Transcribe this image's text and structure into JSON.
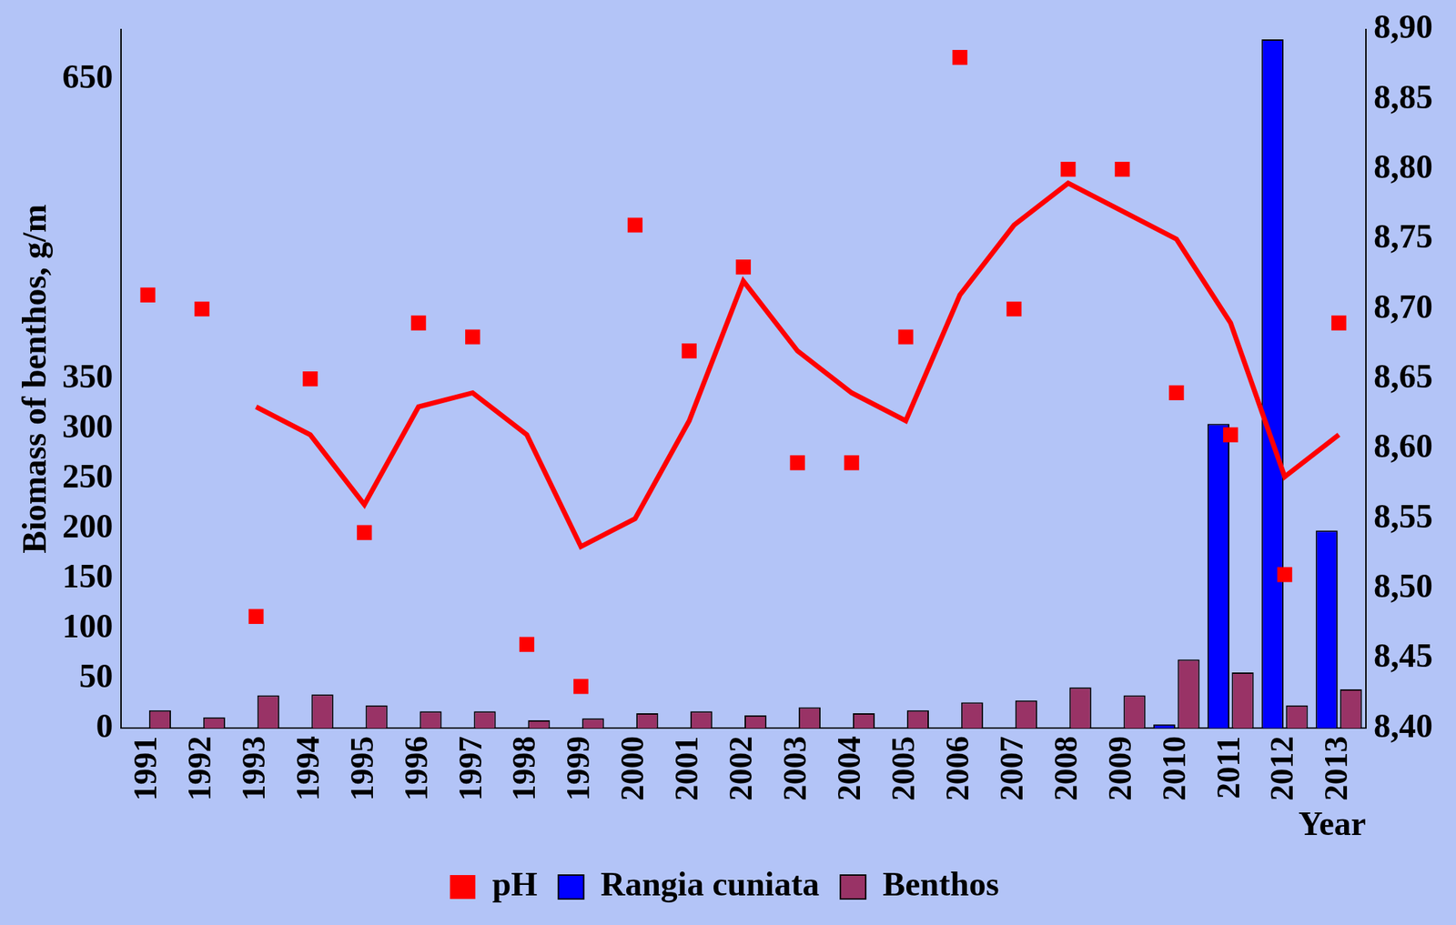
{
  "chart_data": {
    "type": "bar",
    "y_label": "Biomass of benthos, g/m",
    "x_label": "Year",
    "categories": [
      "1991",
      "1992",
      "1993",
      "1994",
      "1995",
      "1996",
      "1997",
      "1998",
      "1999",
      "2000",
      "2001",
      "2002",
      "2003",
      "2004",
      "2005",
      "2006",
      "2007",
      "2008",
      "2009",
      "2010",
      "2011",
      "2012",
      "2013"
    ],
    "series": [
      {
        "name": "Rangia cuniata",
        "type": "bar",
        "color": "#0000ff",
        "values": [
          null,
          null,
          null,
          null,
          null,
          null,
          null,
          null,
          null,
          null,
          null,
          null,
          null,
          null,
          null,
          null,
          null,
          null,
          null,
          4,
          305,
          690,
          198
        ]
      },
      {
        "name": "Benthos",
        "type": "bar",
        "color": "#993366",
        "values": [
          18,
          11,
          33,
          34,
          23,
          17,
          17,
          8,
          10,
          15,
          17,
          13,
          21,
          15,
          18,
          26,
          28,
          41,
          33,
          69,
          56,
          23,
          39
        ]
      },
      {
        "name": "pH",
        "type": "scatter",
        "marker": "square",
        "color": "#ff0000",
        "axis": "y2",
        "values": [
          8.71,
          8.7,
          8.48,
          8.65,
          8.54,
          8.69,
          8.68,
          8.46,
          8.43,
          8.76,
          8.67,
          8.73,
          8.59,
          8.59,
          8.68,
          8.88,
          8.7,
          8.8,
          8.8,
          8.64,
          8.61,
          8.51,
          8.69
        ]
      },
      {
        "type": "line",
        "color": "#ff0000",
        "axis": "y2",
        "values": [
          null,
          null,
          8.63,
          8.61,
          8.56,
          8.63,
          8.64,
          8.61,
          8.53,
          8.55,
          8.62,
          8.72,
          8.67,
          8.64,
          8.62,
          8.71,
          8.76,
          8.79,
          8.77,
          8.75,
          8.69,
          8.58,
          8.61
        ]
      }
    ],
    "ylim": [
      0,
      700
    ],
    "yticks": [
      0,
      50,
      100,
      150,
      200,
      250,
      300,
      350,
      650
    ],
    "y2lim": [
      8.4,
      8.9
    ],
    "y2ticks": [
      {
        "value": 8.4,
        "label": "8,40"
      },
      {
        "value": 8.45,
        "label": "8,45"
      },
      {
        "value": 8.5,
        "label": "8,50"
      },
      {
        "value": 8.55,
        "label": "8,55"
      },
      {
        "value": 8.6,
        "label": "8,60"
      },
      {
        "value": 8.65,
        "label": "8,65"
      },
      {
        "value": 8.7,
        "label": "8,70"
      },
      {
        "value": 8.75,
        "label": "8,75"
      },
      {
        "value": 8.8,
        "label": "8,80"
      },
      {
        "value": 8.85,
        "label": "8,85"
      },
      {
        "value": 8.9,
        "label": "8,90"
      }
    ],
    "legend": "bottom",
    "grid": false
  }
}
